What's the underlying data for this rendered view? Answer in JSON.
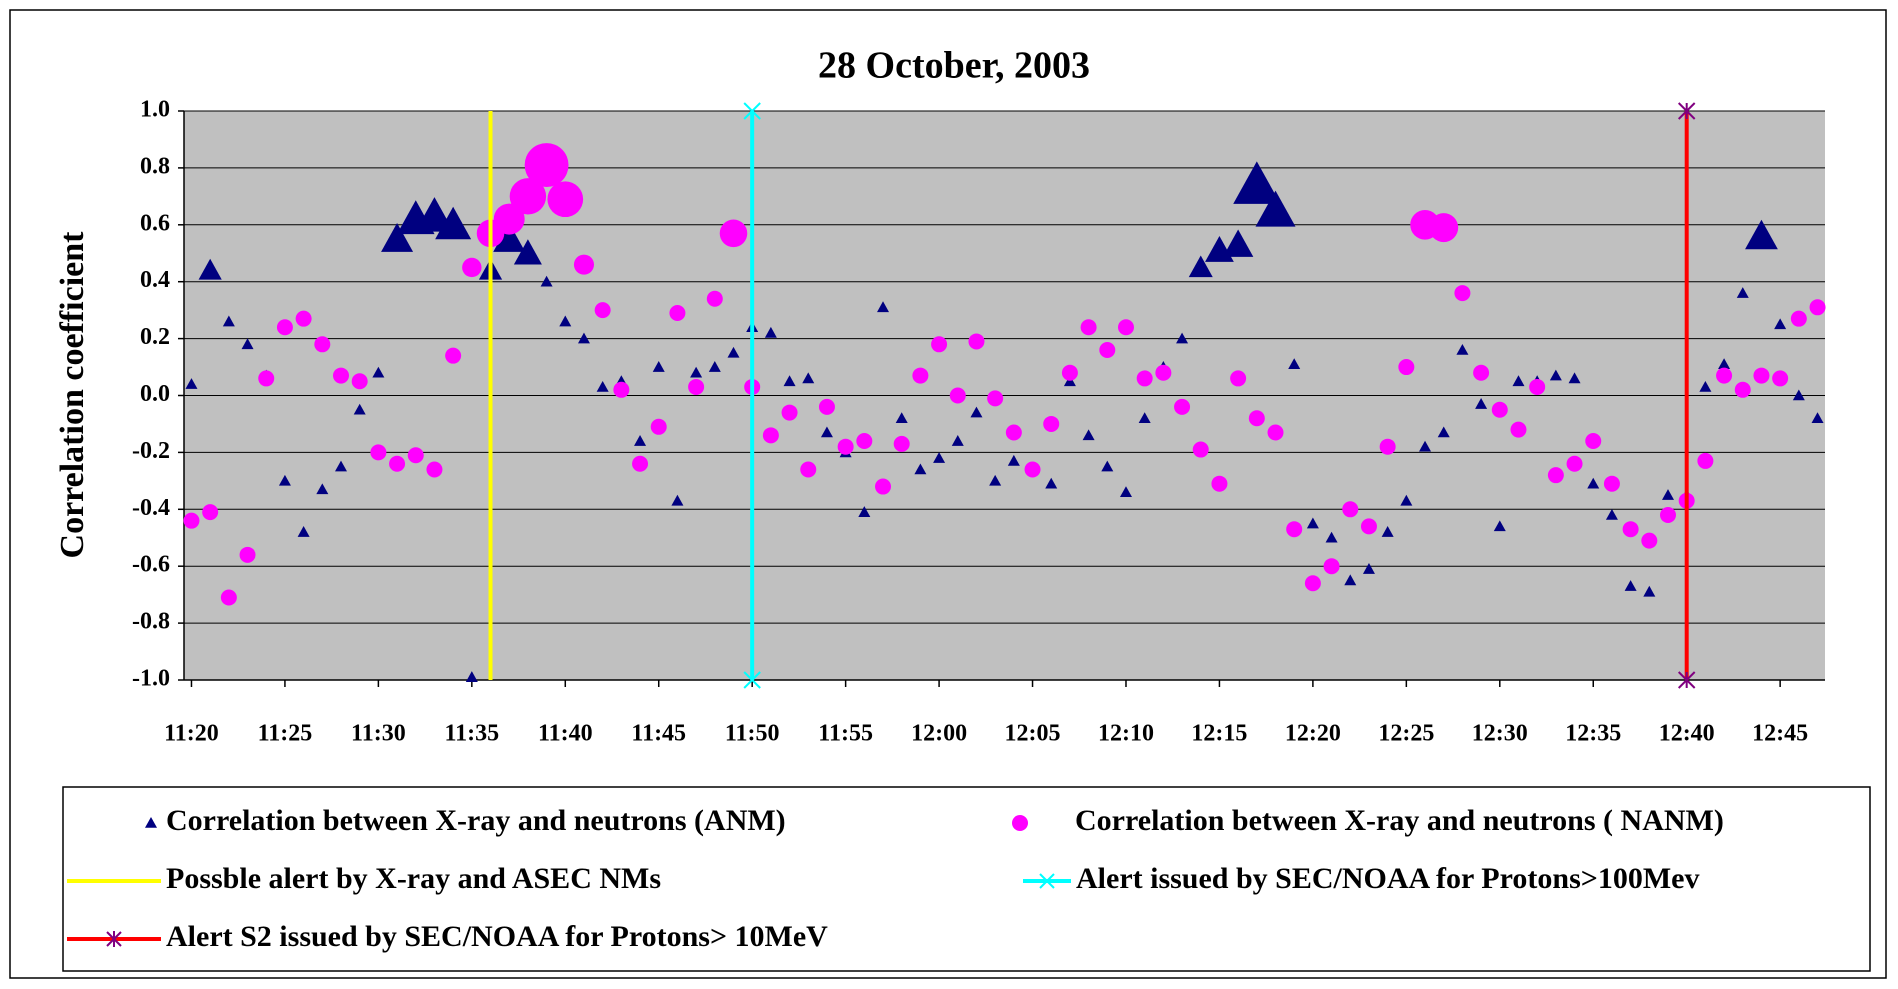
{
  "chart_data": {
    "type": "scatter",
    "title": "28 October, 2003",
    "y_label": "Correlation coefficient",
    "x": [
      680,
      681,
      682,
      683,
      684,
      685,
      686,
      687,
      688,
      689,
      690,
      691,
      692,
      693,
      694,
      695,
      696,
      697,
      698,
      699,
      700,
      701,
      702,
      703,
      704,
      705,
      706,
      707,
      708,
      709,
      710,
      711,
      712,
      713,
      714,
      715,
      716,
      717,
      718,
      719,
      720,
      721,
      722,
      723,
      724,
      725,
      726,
      727,
      728,
      729,
      730,
      731,
      732,
      733,
      734,
      735,
      736,
      737,
      738,
      739,
      740,
      741,
      742,
      743,
      744,
      745,
      746,
      747,
      748,
      749,
      750,
      751,
      752,
      753,
      754,
      755,
      756,
      757,
      758,
      759,
      760,
      761,
      762,
      763,
      764,
      765,
      766,
      767
    ],
    "series": [
      {
        "name": "Correlation between X-ray and neutrons (ANM)",
        "color": "#000080",
        "marker": "triangle",
        "values": [
          0.04,
          0.44,
          0.26,
          0.18,
          0.07,
          -0.3,
          -0.48,
          -0.33,
          -0.25,
          -0.05,
          0.08,
          0.55,
          0.62,
          0.63,
          0.6,
          -0.99,
          0.44,
          0.55,
          0.5,
          0.4,
          0.26,
          0.2,
          0.03,
          0.05,
          -0.16,
          0.1,
          -0.37,
          0.08,
          0.1,
          0.15,
          0.24,
          0.22,
          0.05,
          0.06,
          -0.13,
          -0.2,
          -0.41,
          0.31,
          -0.08,
          -0.26,
          -0.22,
          -0.16,
          -0.06,
          -0.3,
          -0.23,
          -0.26,
          -0.31,
          0.05,
          -0.14,
          -0.25,
          -0.34,
          -0.08,
          0.1,
          0.2,
          0.45,
          0.51,
          0.53,
          0.74,
          0.65,
          0.11,
          -0.45,
          -0.5,
          -0.65,
          -0.61,
          -0.48,
          -0.37,
          -0.18,
          -0.13,
          0.16,
          -0.03,
          -0.46,
          0.05,
          0.05,
          0.07,
          0.06,
          -0.31,
          -0.42,
          -0.67,
          -0.69,
          -0.35,
          -0.35,
          0.03,
          0.11,
          0.36,
          0.56,
          0.25,
          0.0,
          -0.08
        ]
      },
      {
        "name": "Correlation between X-ray and neutrons ( NANM)",
        "color": "#ff00ff",
        "marker": "circle",
        "values": [
          -0.44,
          -0.41,
          -0.71,
          -0.56,
          0.06,
          0.24,
          0.27,
          0.18,
          0.07,
          0.05,
          -0.2,
          -0.24,
          -0.21,
          -0.26,
          0.14,
          0.45,
          0.57,
          0.62,
          0.7,
          0.81,
          0.69,
          0.46,
          0.3,
          0.02,
          -0.24,
          -0.11,
          0.29,
          0.03,
          0.34,
          0.57,
          0.03,
          -0.14,
          -0.06,
          -0.26,
          -0.04,
          -0.18,
          -0.16,
          -0.32,
          -0.17,
          0.07,
          0.18,
          0.0,
          0.19,
          -0.01,
          -0.13,
          -0.26,
          -0.1,
          0.08,
          0.24,
          0.16,
          0.24,
          0.06,
          0.08,
          -0.04,
          -0.19,
          -0.31,
          0.06,
          -0.08,
          -0.13,
          -0.47,
          -0.66,
          -0.6,
          -0.4,
          -0.46,
          -0.18,
          0.1,
          0.6,
          0.59,
          0.36,
          0.08,
          -0.05,
          -0.12,
          0.03,
          -0.28,
          -0.24,
          -0.16,
          -0.31,
          -0.47,
          -0.51,
          -0.42,
          -0.37,
          -0.23,
          0.07,
          0.02,
          0.07,
          0.06,
          0.27,
          0.31
        ]
      },
      {
        "name": "Possble alert by X-ray and ASEC NMs",
        "color": "#ffff00",
        "marker": "none",
        "x": [
          696,
          696
        ],
        "values": [
          -1,
          1
        ]
      },
      {
        "name": "Alert issued by SEC/NOAA for Protons>100Mev",
        "color": "#00ffff",
        "marker": "x",
        "x": [
          710,
          710
        ],
        "values": [
          -1,
          1
        ]
      },
      {
        "name": "Alert S2 issued by SEC/NOAA for Protons> 10MeV",
        "color": "#ff0000",
        "marker_color": "#800080",
        "marker": "star",
        "x": [
          760,
          760
        ],
        "values": [
          -1,
          1
        ]
      }
    ],
    "xlim": [
      679.6,
      767.4
    ],
    "ylim": [
      -1,
      1
    ],
    "xticks": [
      {
        "value": 680,
        "label": "11:20"
      },
      {
        "value": 685,
        "label": "11:25"
      },
      {
        "value": 690,
        "label": "11:30"
      },
      {
        "value": 695,
        "label": "11:35"
      },
      {
        "value": 700,
        "label": "11:40"
      },
      {
        "value": 705,
        "label": "11:45"
      },
      {
        "value": 710,
        "label": "11:50"
      },
      {
        "value": 715,
        "label": "11:55"
      },
      {
        "value": 720,
        "label": "12:00"
      },
      {
        "value": 725,
        "label": "12:05"
      },
      {
        "value": 730,
        "label": "12:10"
      },
      {
        "value": 735,
        "label": "12:15"
      },
      {
        "value": 740,
        "label": "12:20"
      },
      {
        "value": 745,
        "label": "12:25"
      },
      {
        "value": 750,
        "label": "12:30"
      },
      {
        "value": 755,
        "label": "12:35"
      },
      {
        "value": 760,
        "label": "12:40"
      },
      {
        "value": 765,
        "label": "12:45"
      }
    ],
    "yticks": [
      {
        "value": -1,
        "label": "-1.0"
      },
      -0.8,
      -0.6,
      -0.4,
      -0.2,
      {
        "value": 0,
        "label": "0.0"
      },
      0.2,
      0.4,
      0.6,
      0.8,
      {
        "value": 1,
        "label": "1.0"
      }
    ],
    "grid": true,
    "plot_background": "#c0c0c0"
  }
}
